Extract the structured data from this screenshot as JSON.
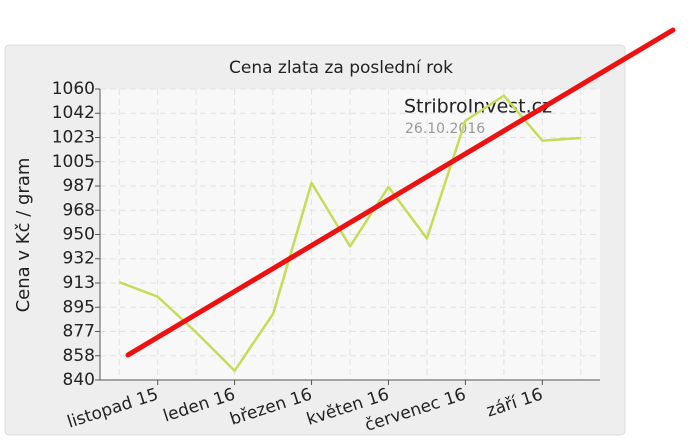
{
  "chart_data": {
    "type": "line",
    "title": "Cena zlata za poslední rok",
    "y_label": "Cena v Kč / gram",
    "annotations": [
      "StribroInvest.cz",
      "26.10.2016"
    ],
    "categories": [
      null,
      "listopad 15",
      null,
      "leden 16",
      null,
      "březen 16",
      null,
      "květen 16",
      null,
      "červenec 16",
      null,
      "září 16",
      null
    ],
    "values": [
      914,
      903,
      876,
      847,
      890,
      989,
      941,
      986,
      947,
      1036,
      1055,
      1021,
      1023
    ],
    "color": "#c5dd55",
    "ylim": [
      840,
      1060
    ],
    "yticks": [
      840,
      {
        "value": 858.33,
        "label": "858"
      },
      {
        "value": 876.67,
        "label": "877"
      },
      895,
      {
        "value": 913.33,
        "label": "913"
      },
      {
        "value": 931.67,
        "label": "932"
      },
      950,
      {
        "value": 968.33,
        "label": "968"
      },
      {
        "value": 986.67,
        "label": "987"
      },
      1005,
      {
        "value": 1023.33,
        "label": "1023"
      },
      {
        "value": 1041.67,
        "label": "1042"
      },
      1060
    ],
    "grid": true
  }
}
